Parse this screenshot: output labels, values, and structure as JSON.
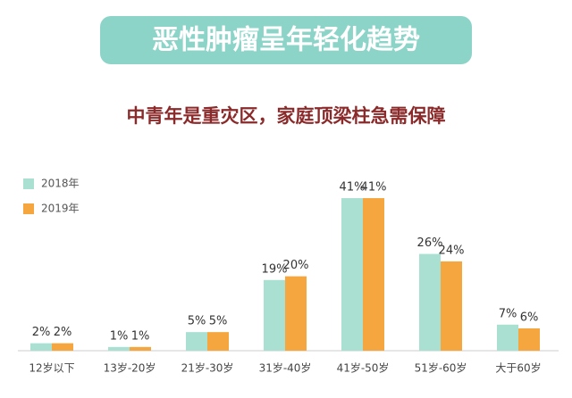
{
  "chart_data": {
    "type": "bar",
    "title": "恶性肿瘤呈年轻化趋势",
    "subtitle": "中青年是重灾区，家庭顶梁柱急需保障",
    "categories": [
      "12岁以下",
      "13岁-20岁",
      "21岁-30岁",
      "31岁-40岁",
      "41岁-50岁",
      "51岁-60岁",
      "大于60岁"
    ],
    "series": [
      {
        "name": "2018年",
        "color": "#a9e0d2",
        "values": [
          2,
          1,
          5,
          19,
          41,
          26,
          7
        ],
        "value_labels": [
          "2%",
          "1%",
          "5%",
          "19%",
          "41%",
          "26%",
          "7%"
        ]
      },
      {
        "name": "2019年",
        "color": "#f5a63e",
        "values": [
          2,
          1,
          5,
          20,
          41,
          24,
          6
        ],
        "value_labels": [
          "2%",
          "1%",
          "5%",
          "20%",
          "41%",
          "24%",
          "6%"
        ]
      }
    ],
    "legend": "upper left"
  }
}
